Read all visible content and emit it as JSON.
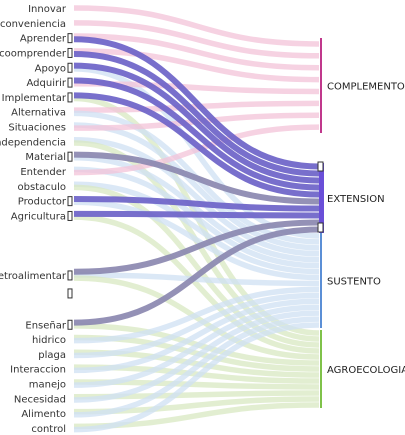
{
  "chart_data": {
    "type": "sankey",
    "left_nodes": [
      "Innovar",
      "conveniencia",
      "Aprender",
      "coomprender",
      "Apoyo",
      "Adquirir",
      "Implementar",
      "Alternativa",
      "Situaciones",
      "Independencia",
      "Material",
      "Entender",
      "obstaculo",
      "Productor",
      "Agricultura",
      "Retroalimentar",
      "Enseñar",
      "hidrico",
      "plaga",
      "Interaccion",
      "manejo",
      "Necesidad",
      "Alimento",
      "control"
    ],
    "right_nodes": [
      {
        "name": "COMPLEMENTOS",
        "color": "#c0388c"
      },
      {
        "name": "EXTENSION",
        "color": "#6a4fd8"
      },
      {
        "name": "SUSTENTO",
        "color": "#5b8fd6"
      },
      {
        "name": "AGROECOLOGIA",
        "color": "#7fc24a"
      }
    ],
    "link_colors": {
      "COMPLEMENTOS": "#f3c3d8",
      "EXTENSION_selected": "#6c63c8",
      "EXTENSION_grey": "#9c9cb4",
      "SUSTENTO": "#cfe0f3",
      "AGROECOLOGIA": "#d8e8c2"
    },
    "highlighted_nodes": [
      "Aprender",
      "coomprender",
      "Apoyo",
      "Adquirir",
      "Implementar",
      "Material",
      "Productor",
      "Agricultura",
      "Retroalimentar",
      "Enseñar"
    ],
    "links": [
      {
        "source": "Innovar",
        "target": "COMPLEMENTOS",
        "value": 1
      },
      {
        "source": "conveniencia",
        "target": "COMPLEMENTOS",
        "value": 1
      },
      {
        "source": "Aprender",
        "target": "COMPLEMENTOS",
        "value": 1
      },
      {
        "source": "Aprender",
        "target": "EXTENSION",
        "value": 1
      },
      {
        "source": "coomprender",
        "target": "COMPLEMENTOS",
        "value": 1
      },
      {
        "source": "coomprender",
        "target": "EXTENSION",
        "value": 1
      },
      {
        "source": "Apoyo",
        "target": "EXTENSION",
        "value": 1
      },
      {
        "source": "Apoyo",
        "target": "SUSTENTO",
        "value": 1
      },
      {
        "source": "Adquirir",
        "target": "EXTENSION",
        "value": 1
      },
      {
        "source": "Adquirir",
        "target": "COMPLEMENTOS",
        "value": 1
      },
      {
        "source": "Implementar",
        "target": "EXTENSION",
        "value": 1
      },
      {
        "source": "Implementar",
        "target": "AGROECOLOGIA",
        "value": 1
      },
      {
        "source": "Alternativa",
        "target": "COMPLEMENTOS",
        "value": 1
      },
      {
        "source": "Alternativa",
        "target": "SUSTENTO",
        "value": 1
      },
      {
        "source": "Situaciones",
        "target": "SUSTENTO",
        "value": 1
      },
      {
        "source": "Situaciones",
        "target": "COMPLEMENTOS",
        "value": 1
      },
      {
        "source": "Independencia",
        "target": "SUSTENTO",
        "value": 1
      },
      {
        "source": "Independencia",
        "target": "AGROECOLOGIA",
        "value": 1
      },
      {
        "source": "Material",
        "target": "EXTENSION",
        "value": 1
      },
      {
        "source": "Material",
        "target": "SUSTENTO",
        "value": 1
      },
      {
        "source": "Entender",
        "target": "SUSTENTO",
        "value": 1
      },
      {
        "source": "Entender",
        "target": "COMPLEMENTOS",
        "value": 1
      },
      {
        "source": "obstaculo",
        "target": "SUSTENTO",
        "value": 1
      },
      {
        "source": "obstaculo",
        "target": "AGROECOLOGIA",
        "value": 1
      },
      {
        "source": "Productor",
        "target": "EXTENSION",
        "value": 1
      },
      {
        "source": "Productor",
        "target": "SUSTENTO",
        "value": 1
      },
      {
        "source": "Agricultura",
        "target": "EXTENSION",
        "value": 1
      },
      {
        "source": "Agricultura",
        "target": "AGROECOLOGIA",
        "value": 1
      },
      {
        "source": "Retroalimentar",
        "target": "EXTENSION",
        "value": 1
      },
      {
        "source": "Retroalimentar",
        "target": "SUSTENTO",
        "value": 1
      },
      {
        "source": "Retroalimentar",
        "target": "AGROECOLOGIA",
        "value": 1
      },
      {
        "source": "Enseñar",
        "target": "EXTENSION",
        "value": 1
      },
      {
        "source": "Enseñar",
        "target": "AGROECOLOGIA",
        "value": 1
      },
      {
        "source": "hidrico",
        "target": "AGROECOLOGIA",
        "value": 1
      },
      {
        "source": "hidrico",
        "target": "SUSTENTO",
        "value": 1
      },
      {
        "source": "plaga",
        "target": "AGROECOLOGIA",
        "value": 1
      },
      {
        "source": "plaga",
        "target": "SUSTENTO",
        "value": 1
      },
      {
        "source": "Interaccion",
        "target": "AGROECOLOGIA",
        "value": 1
      },
      {
        "source": "Interaccion",
        "target": "SUSTENTO",
        "value": 1
      },
      {
        "source": "manejo",
        "target": "AGROECOLOGIA",
        "value": 1
      },
      {
        "source": "manejo",
        "target": "SUSTENTO",
        "value": 1
      },
      {
        "source": "Necesidad",
        "target": "AGROECOLOGIA",
        "value": 1
      },
      {
        "source": "Necesidad",
        "target": "SUSTENTO",
        "value": 1
      },
      {
        "source": "Alimento",
        "target": "AGROECOLOGIA",
        "value": 1
      },
      {
        "source": "Alimento",
        "target": "SUSTENTO",
        "value": 1
      },
      {
        "source": "control",
        "target": "AGROECOLOGIA",
        "value": 1
      },
      {
        "source": "control",
        "target": "SUSTENTO",
        "value": 1
      }
    ]
  }
}
